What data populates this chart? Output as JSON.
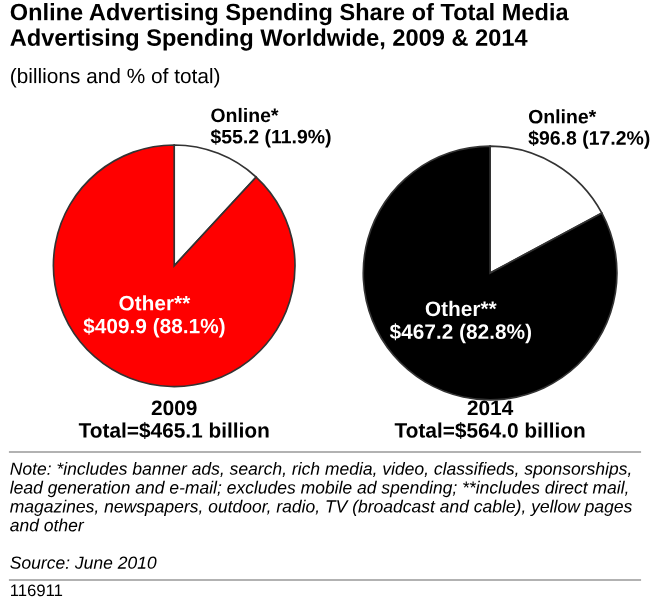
{
  "chart_data": [
    {
      "type": "pie",
      "title": "Online Advertising Spending Share of Total Media Advertising Spending Worldwide, 2009 & 2014",
      "subtitle": "(billions and % of total)",
      "xlabel": "2009",
      "categories": [
        "Online*",
        "Other**"
      ],
      "values": [
        55.2,
        409.9
      ],
      "colors": [
        "#ffffff",
        "#ff0000"
      ],
      "value_labels": [
        "$55.2 (11.9%)",
        "$409.9 (88.1%)"
      ],
      "annotations": [
        "Total=$465.1 billion",
        "Note: *includes banner ads, search, rich media, video, classifieds, sponsorships, lead generation and e-mail; excludes mobile ad spending; **includes direct mail, magazines, newspapers, outdoor, radio, TV (broadcast and cable), yellow pages and other",
        "Source: June 2010",
        "116911"
      ]
    },
    {
      "type": "pie",
      "xlabel": "2014",
      "categories": [
        "Online*",
        "Other**"
      ],
      "values": [
        96.8,
        467.2
      ],
      "colors": [
        "#ffffff",
        "#000000"
      ],
      "value_labels": [
        "$96.8 (17.2%)",
        "$467.2 (82.8%)"
      ],
      "annotations": [
        "Total=$564.0 billion"
      ]
    }
  ]
}
